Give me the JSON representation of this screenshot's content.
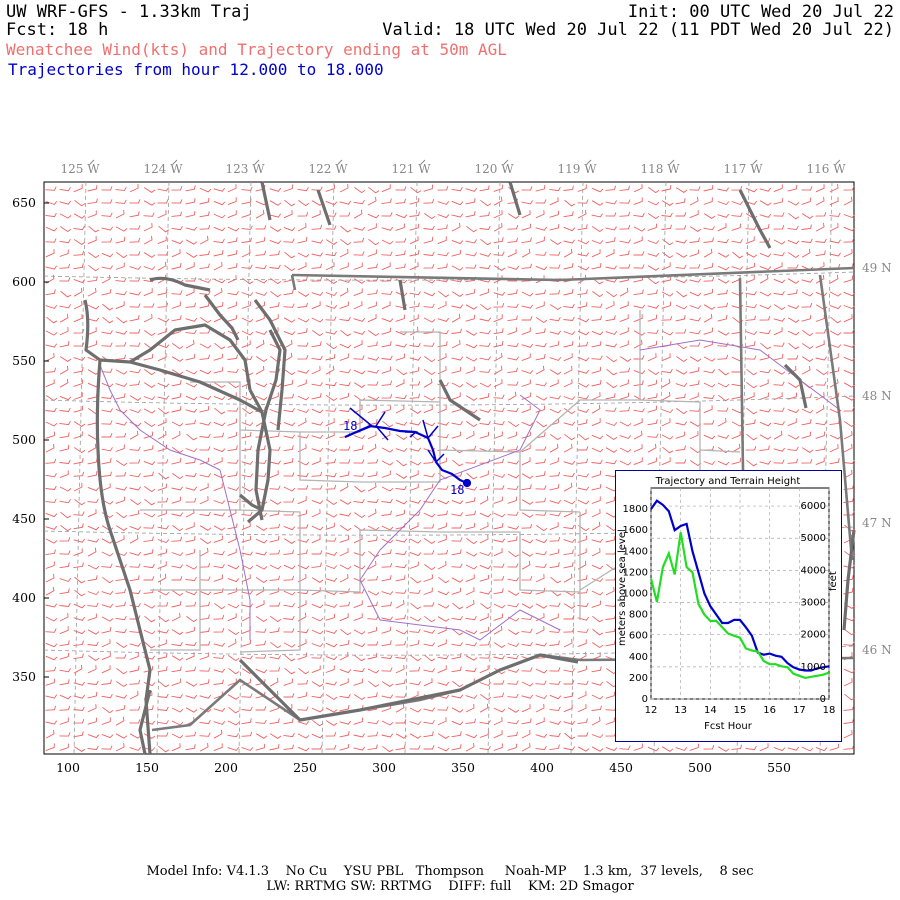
{
  "header": {
    "title": "UW WRF-GFS - 1.33km Traj",
    "forecast": "Fcst:   18 h",
    "init": "Init: 00 UTC Wed 20 Jul 22",
    "valid": "Valid: 18 UTC Wed 20 Jul 22 (11 PDT Wed 20 Jul 22)",
    "subtitle": "Wenatchee Wind(kts) and Trajectory ending at 50m AGL",
    "traj_range": "Trajectories from hour  12.000 to  18.000"
  },
  "colors": {
    "wind_barbs": "#f06060",
    "coastline": "#6e6e6e",
    "state_border": "#7a7a7a",
    "county_border": "#b4b4b4",
    "river": "#a070c8",
    "grid": "#9a9a9a",
    "trajectory": "#0000cc",
    "trajectory_height": "#0000cc",
    "terrain_height": "#22dd22",
    "inset_border": "#0000aa"
  },
  "map": {
    "longitude_labels": [
      "125 W",
      "124 W",
      "123 W",
      "122 W",
      "121 W",
      "120 W",
      "119 W",
      "118 W",
      "117 W",
      "116 W"
    ],
    "latitude_labels": [
      "49 N",
      "48 N",
      "47 N",
      "46 N"
    ],
    "x_ticks": [
      "100",
      "150",
      "200",
      "250",
      "300",
      "350",
      "400",
      "450",
      "500",
      "550"
    ],
    "y_ticks": [
      "650",
      "600",
      "550",
      "500",
      "450",
      "400",
      "350"
    ],
    "trajectory_labels": [
      "18",
      "18"
    ],
    "icons": [
      "wind-barb-icon",
      "trajectory-arrow-icon"
    ]
  },
  "chart_data": {
    "type": "line",
    "title": "Trajectory and Terrain Height",
    "xlabel": "Fcst Hour",
    "ylabel": "meters above sea level",
    "y2label": "feet",
    "xlim": [
      12,
      18
    ],
    "ylim": [
      0,
      2000
    ],
    "y2lim": [
      0,
      6562
    ],
    "x_ticks": [
      "12",
      "13",
      "14",
      "15",
      "16",
      "17",
      "18"
    ],
    "y_ticks": [
      "0",
      "200",
      "400",
      "600",
      "800",
      "1000",
      "1200",
      "1400",
      "1600",
      "1800"
    ],
    "y2_ticks": [
      "0",
      "1000",
      "2000",
      "3000",
      "4000",
      "5000",
      "6000"
    ],
    "grid": true,
    "series": [
      {
        "x": [
          12.0,
          12.2,
          12.4,
          12.6,
          12.8,
          13.0,
          13.2,
          13.4,
          13.6,
          13.8,
          14.0,
          14.2,
          14.4,
          14.6,
          14.8,
          15.0,
          15.2,
          15.4,
          15.6,
          15.8,
          16.0,
          16.2,
          16.4,
          16.6,
          16.8,
          17.0,
          17.2,
          17.4,
          17.6,
          17.8,
          18.0
        ],
        "values": [
          1800,
          1880,
          1840,
          1780,
          1600,
          1640,
          1660,
          1400,
          1200,
          1000,
          880,
          800,
          720,
          720,
          750,
          750,
          680,
          600,
          440,
          420,
          430,
          410,
          400,
          340,
          300,
          280,
          270,
          270,
          290,
          300,
          310
        ]
      },
      {
        "x": [
          12.0,
          12.2,
          12.4,
          12.6,
          12.8,
          13.0,
          13.2,
          13.4,
          13.6,
          13.8,
          14.0,
          14.2,
          14.4,
          14.6,
          14.8,
          15.0,
          15.2,
          15.4,
          15.6,
          15.8,
          16.0,
          16.2,
          16.4,
          16.6,
          16.8,
          17.0,
          17.2,
          17.4,
          17.6,
          17.8,
          18.0
        ],
        "values": [
          1140,
          920,
          1250,
          1380,
          1180,
          1580,
          1250,
          1200,
          900,
          800,
          740,
          740,
          680,
          620,
          600,
          580,
          480,
          460,
          450,
          360,
          330,
          330,
          310,
          300,
          240,
          220,
          200,
          210,
          220,
          230,
          250
        ]
      }
    ]
  },
  "footer": {
    "line1": "Model Info: V4.1.3    No Cu    YSU PBL   Thompson     Noah-MP    1.3 km,  37 levels,    8 sec",
    "line2": "LW: RRTMG SW: RRTMG    DIFF: full    KM: 2D Smagor"
  }
}
